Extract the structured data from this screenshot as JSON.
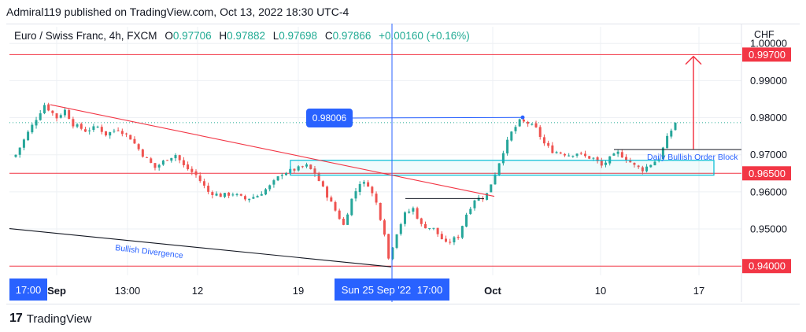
{
  "header": {
    "publisher": "Admiral119 published on TradingView.com, Oct 13, 2022 18:30 UTC-4"
  },
  "legend": {
    "symbol": "Euro / Swiss Franc, 4h, FXCM",
    "open_label": "O",
    "open": "0.97706",
    "high_label": "H",
    "high": "0.97882",
    "low_label": "L",
    "low": "0.97698",
    "close_label": "C",
    "close": "0.97866",
    "change": "+0.00160 (+0.16%)"
  },
  "footer": {
    "brand": "TradingView"
  },
  "colors": {
    "up": "#26a69a",
    "down": "#ef5350",
    "hline": "#f23645",
    "trend_red": "#f23645",
    "trend_black": "#131722",
    "accent_blue": "#2962ff",
    "zone": "#00bcd4",
    "dotted": "#22ab94"
  },
  "chart_data": {
    "type": "candlestick",
    "instrument": "Euro / Swiss Franc",
    "timeframe": "4h",
    "currency": "CHF",
    "ylim": [
      0.9375,
      1.0045
    ],
    "y_ticks": [
      "1.00000",
      "0.99000",
      "0.98000",
      "0.97000",
      "0.96000",
      "0.95000"
    ],
    "y_tick_values": [
      1.0,
      0.99,
      0.98,
      0.97,
      0.96,
      0.95
    ],
    "x_ticks": [
      "Sep",
      "13:00",
      "12",
      "19",
      "Oct",
      "10",
      "17"
    ],
    "x_tick_bold": [
      "Sep",
      "Oct"
    ],
    "x_marker_left": "17:00",
    "x_marker_center": "Sun 25 Sep '22",
    "x_marker_right": "17:00",
    "current_price": 0.97866,
    "horizontal_levels": [
      {
        "label": "0.99700",
        "value": 0.997
      },
      {
        "label": "0.96500",
        "value": 0.965
      },
      {
        "label": "0.94000",
        "value": 0.94
      }
    ],
    "annotations": {
      "price_callout": "0.98006",
      "divergence_text": "Bullish Divergence",
      "order_block_text": "Daily Bullish Order Block"
    },
    "close_path": [
      [
        0,
        0.97
      ],
      [
        3,
        0.976
      ],
      [
        7,
        0.9835
      ],
      [
        10,
        0.98
      ],
      [
        12,
        0.982
      ],
      [
        14,
        0.9782
      ],
      [
        17,
        0.9765
      ],
      [
        20,
        0.9775
      ],
      [
        22,
        0.9755
      ],
      [
        25,
        0.977
      ],
      [
        28,
        0.9745
      ],
      [
        31,
        0.97
      ],
      [
        34,
        0.9665
      ],
      [
        37,
        0.969
      ],
      [
        39,
        0.97
      ],
      [
        41,
        0.967
      ],
      [
        44,
        0.9645
      ],
      [
        47,
        0.96
      ],
      [
        50,
        0.959
      ],
      [
        53,
        0.9595
      ],
      [
        56,
        0.958
      ],
      [
        59,
        0.959
      ],
      [
        62,
        0.9615
      ],
      [
        65,
        0.965
      ],
      [
        68,
        0.966
      ],
      [
        71,
        0.967
      ],
      [
        73,
        0.965
      ],
      [
        75,
        0.961
      ],
      [
        78,
        0.955
      ],
      [
        80,
        0.951
      ],
      [
        82,
        0.958
      ],
      [
        84,
        0.9625
      ],
      [
        86,
        0.962
      ],
      [
        88,
        0.957
      ],
      [
        90,
        0.949
      ],
      [
        91,
        0.942
      ],
      [
        93,
        0.949
      ],
      [
        95,
        0.954
      ],
      [
        97,
        0.9555
      ],
      [
        99,
        0.951
      ],
      [
        102,
        0.95
      ],
      [
        105,
        0.946
      ],
      [
        108,
        0.948
      ],
      [
        110,
        0.954
      ],
      [
        112,
        0.958
      ],
      [
        114,
        0.9585
      ],
      [
        115,
        0.9595
      ],
      [
        117,
        0.965
      ],
      [
        119,
        0.971
      ],
      [
        121,
        0.976
      ],
      [
        123,
        0.979
      ],
      [
        125,
        0.9785
      ],
      [
        127,
        0.977
      ],
      [
        129,
        0.973
      ],
      [
        131,
        0.971
      ],
      [
        133,
        0.9705
      ],
      [
        135,
        0.97
      ],
      [
        137,
        0.9705
      ],
      [
        139,
        0.9695
      ],
      [
        141,
        0.969
      ],
      [
        143,
        0.967
      ],
      [
        145,
        0.969
      ],
      [
        147,
        0.9705
      ],
      [
        149,
        0.969
      ],
      [
        151,
        0.967
      ],
      [
        153,
        0.966
      ],
      [
        155,
        0.9675
      ],
      [
        157,
        0.969
      ],
      [
        159,
        0.9745
      ],
      [
        161,
        0.9787
      ]
    ]
  }
}
